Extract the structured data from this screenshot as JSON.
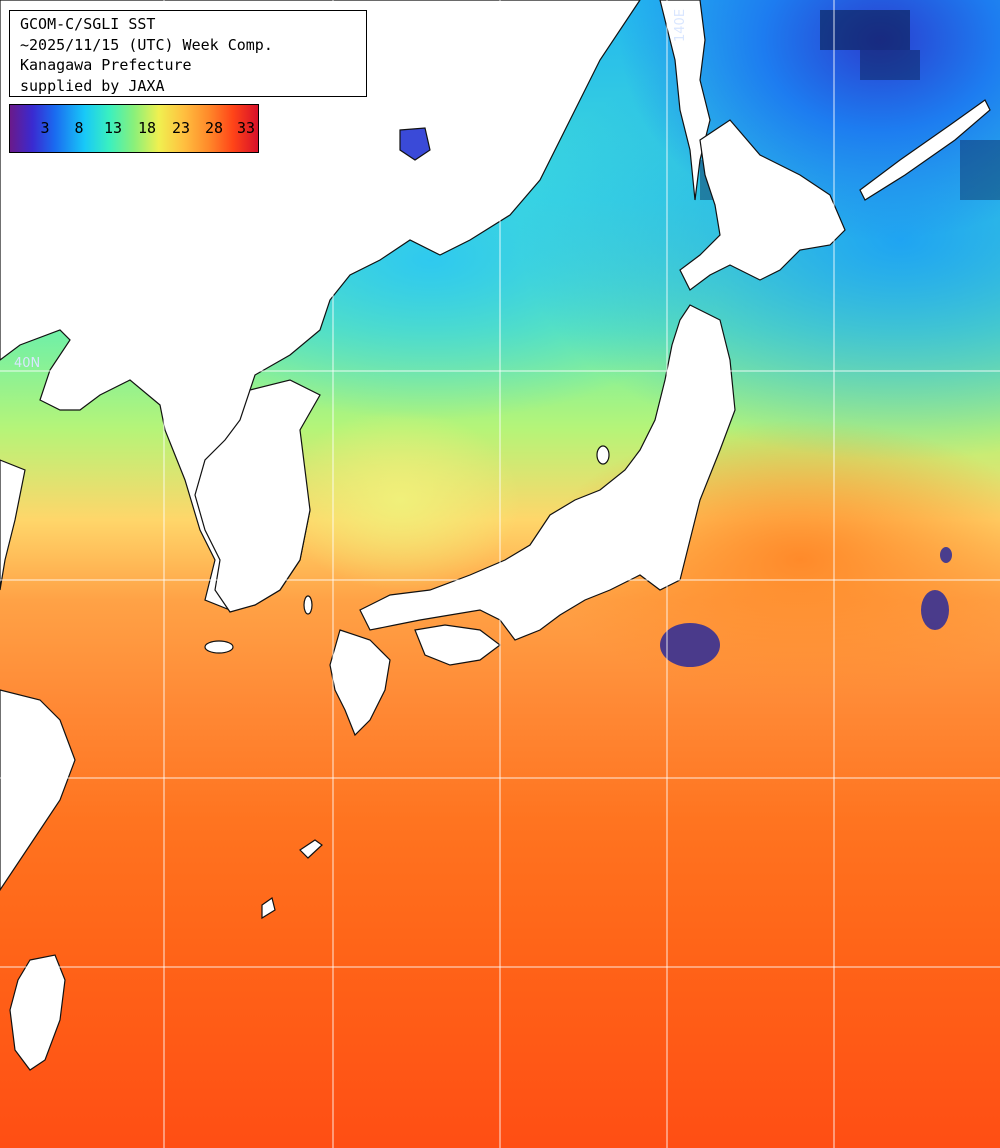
{
  "title_lines": [
    "GCOM-C/SGLI SST",
    "~2025/11/15 (UTC) Week Comp.",
    "Kanagawa Prefecture",
    "supplied by JAXA"
  ],
  "colorbar": {
    "ticks": [
      "3",
      "8",
      "13",
      "18",
      "23",
      "28",
      "33"
    ],
    "colors": [
      "#6a1a8a",
      "#3a2ad0",
      "#1a6af0",
      "#18c8f8",
      "#3af0c0",
      "#8af07a",
      "#f0f050",
      "#ffc040",
      "#ff8a2a",
      "#ff4418",
      "#d8102a"
    ]
  },
  "grid_labels": {
    "longitude": "140E",
    "latitude": "40N"
  },
  "colors": {
    "land": "#ffffff",
    "coastline": "#111111",
    "grid": "#ffffff"
  }
}
